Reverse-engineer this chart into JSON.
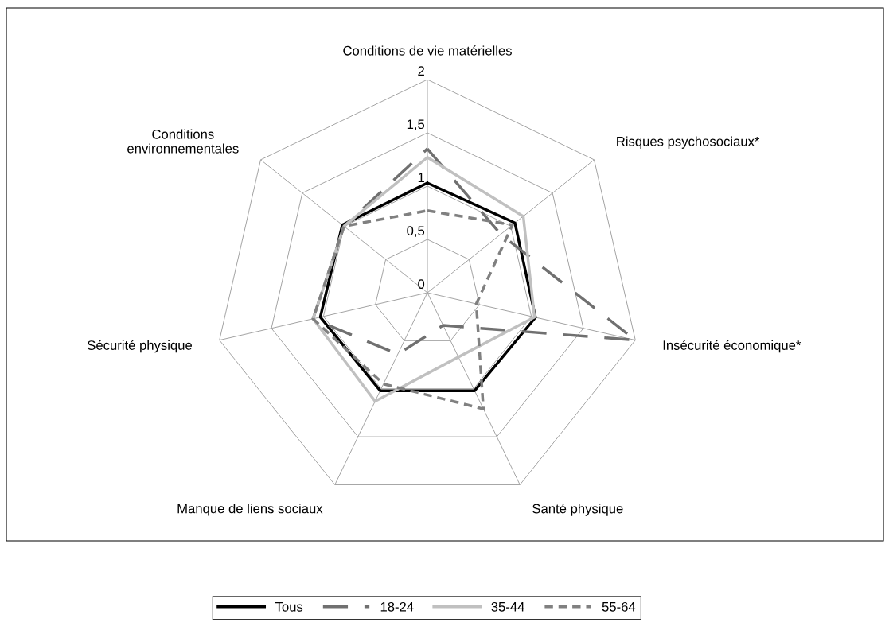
{
  "chart_data": {
    "type": "radar",
    "categories": [
      "Conditions de vie matérielles",
      "Risques psychosociaux*",
      "Insécurité économique*",
      "Santé physique",
      "Manque de liens sociaux",
      "Sécurité physique",
      "Conditions\nenvironnementales"
    ],
    "series": [
      {
        "name": "Tous",
        "color": "#000000",
        "line_style": "solid",
        "values": [
          1.03,
          1.05,
          1.04,
          1.02,
          1.02,
          1.03,
          1.02
        ]
      },
      {
        "name": "18-24",
        "color": "#707070",
        "line_style": "dashed",
        "values": [
          1.35,
          0.88,
          2,
          0.34,
          0.64,
          1.1,
          1
        ]
      },
      {
        "name": "35-44",
        "color": "#c0c0c0",
        "line_style": "solid",
        "values": [
          1.27,
          1.15,
          1.03,
          0.67,
          1.13,
          1.1,
          1
        ]
      },
      {
        "name": "55-64",
        "color": "#808080",
        "line_style": "dotted",
        "values": [
          0.77,
          1.02,
          0.47,
          1.21,
          0.95,
          1.1,
          1
        ]
      }
    ],
    "ylim": [
      0,
      2
    ],
    "yticks": [
      {
        "value": 0,
        "label": "0"
      },
      {
        "value": 0.5,
        "label": "0,5"
      },
      {
        "value": 1,
        "label": "1"
      },
      {
        "value": 1.5,
        "label": "1,5"
      },
      {
        "value": 2,
        "label": "2"
      }
    ],
    "grid": true,
    "legend": "bottom"
  }
}
